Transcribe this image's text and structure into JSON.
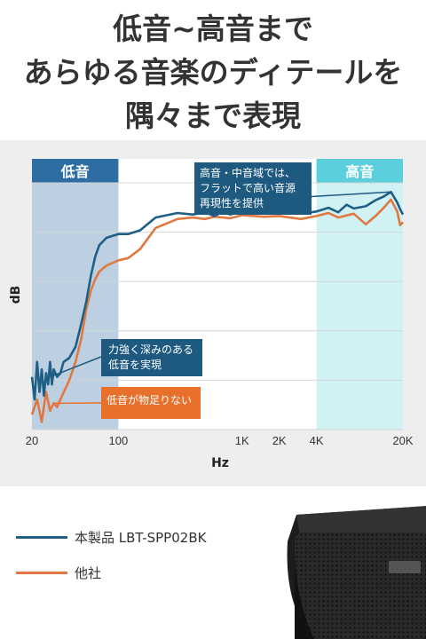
{
  "headline": [
    "低音~高音まで",
    "あらゆる音楽のディテールを",
    "隅々まで表現"
  ],
  "chart_data": {
    "type": "line",
    "x_scale": "log",
    "xlim": [
      20,
      20000
    ],
    "x_ticks": [
      20,
      100,
      1000,
      2000,
      4000,
      20000
    ],
    "x_tick_labels": [
      "20",
      "100",
      "1K",
      "2K",
      "4K",
      "20K"
    ],
    "xlabel": "Hz",
    "ylabel": "dB",
    "grid": true,
    "regions": [
      {
        "label": "低音",
        "from": 20,
        "to": 100,
        "color": "#2e6da4"
      },
      {
        "label": "高音",
        "from": 4000,
        "to": 20000,
        "color": "#5bd0dc"
      }
    ],
    "annotations": [
      {
        "text": "高音・中音域では、\nフラットで高い音源\n再現性を提供",
        "color": "#1e5a80"
      },
      {
        "text": "力強く深みのある\n低音を実現",
        "color": "#1e5a80"
      },
      {
        "text": "低音が物足りない",
        "color": "#e8702a"
      }
    ],
    "series": [
      {
        "name": "本製品 LBT-SPP02BK",
        "color": "#1f5f85",
        "points": [
          [
            20,
            -13
          ],
          [
            21,
            -16
          ],
          [
            22,
            -11
          ],
          [
            23,
            -15
          ],
          [
            24,
            -12
          ],
          [
            25,
            -15.5
          ],
          [
            26,
            -12.5
          ],
          [
            27,
            -14
          ],
          [
            28,
            -11
          ],
          [
            29,
            -14
          ],
          [
            30,
            -12
          ],
          [
            32,
            -13
          ],
          [
            34,
            -12.5
          ],
          [
            36,
            -11
          ],
          [
            40,
            -10.5
          ],
          [
            45,
            -9
          ],
          [
            50,
            -6
          ],
          [
            55,
            -3
          ],
          [
            60,
            0.5
          ],
          [
            65,
            3
          ],
          [
            70,
            4.5
          ],
          [
            80,
            5.5
          ],
          [
            100,
            6
          ],
          [
            120,
            6
          ],
          [
            150,
            6.5
          ],
          [
            200,
            8.2
          ],
          [
            300,
            8.8
          ],
          [
            400,
            8.6
          ],
          [
            500,
            8.9
          ],
          [
            600,
            8.4
          ],
          [
            700,
            9
          ],
          [
            800,
            8.6
          ],
          [
            1000,
            9
          ],
          [
            1200,
            8.7
          ],
          [
            1500,
            9.2
          ],
          [
            2000,
            8.8
          ],
          [
            2500,
            9.3
          ],
          [
            3000,
            8.7
          ],
          [
            4000,
            9
          ],
          [
            5000,
            9.5
          ],
          [
            6000,
            8.9
          ],
          [
            7000,
            9.9
          ],
          [
            8000,
            9.4
          ],
          [
            10000,
            9.7
          ],
          [
            12000,
            10.5
          ],
          [
            14000,
            11
          ],
          [
            16000,
            11.6
          ],
          [
            18000,
            10.2
          ],
          [
            19000,
            9.3
          ],
          [
            20000,
            8.6
          ]
        ]
      },
      {
        "name": "他社",
        "color": "#e07840",
        "points": [
          [
            20,
            -18
          ],
          [
            22,
            -16
          ],
          [
            24,
            -19
          ],
          [
            26,
            -15
          ],
          [
            28,
            -17.5
          ],
          [
            30,
            -16.5
          ],
          [
            32,
            -17
          ],
          [
            35,
            -15.5
          ],
          [
            40,
            -13.5
          ],
          [
            45,
            -11
          ],
          [
            50,
            -8
          ],
          [
            55,
            -4
          ],
          [
            60,
            -1.5
          ],
          [
            65,
            0
          ],
          [
            70,
            1
          ],
          [
            80,
            1.8
          ],
          [
            100,
            2.5
          ],
          [
            120,
            2.8
          ],
          [
            150,
            4
          ],
          [
            200,
            6.8
          ],
          [
            300,
            8
          ],
          [
            400,
            8.2
          ],
          [
            500,
            8
          ],
          [
            600,
            8.3
          ],
          [
            800,
            8.1
          ],
          [
            1000,
            8.5
          ],
          [
            1500,
            8.3
          ],
          [
            2000,
            8.4
          ],
          [
            3000,
            8
          ],
          [
            4000,
            8.4
          ],
          [
            5000,
            8.8
          ],
          [
            6000,
            8.2
          ],
          [
            8000,
            8.7
          ],
          [
            10000,
            7.3
          ],
          [
            12000,
            8.4
          ],
          [
            14000,
            9.5
          ],
          [
            16000,
            10.6
          ],
          [
            18000,
            9
          ],
          [
            19000,
            7.2
          ],
          [
            20000,
            7.6
          ]
        ]
      }
    ]
  }
}
